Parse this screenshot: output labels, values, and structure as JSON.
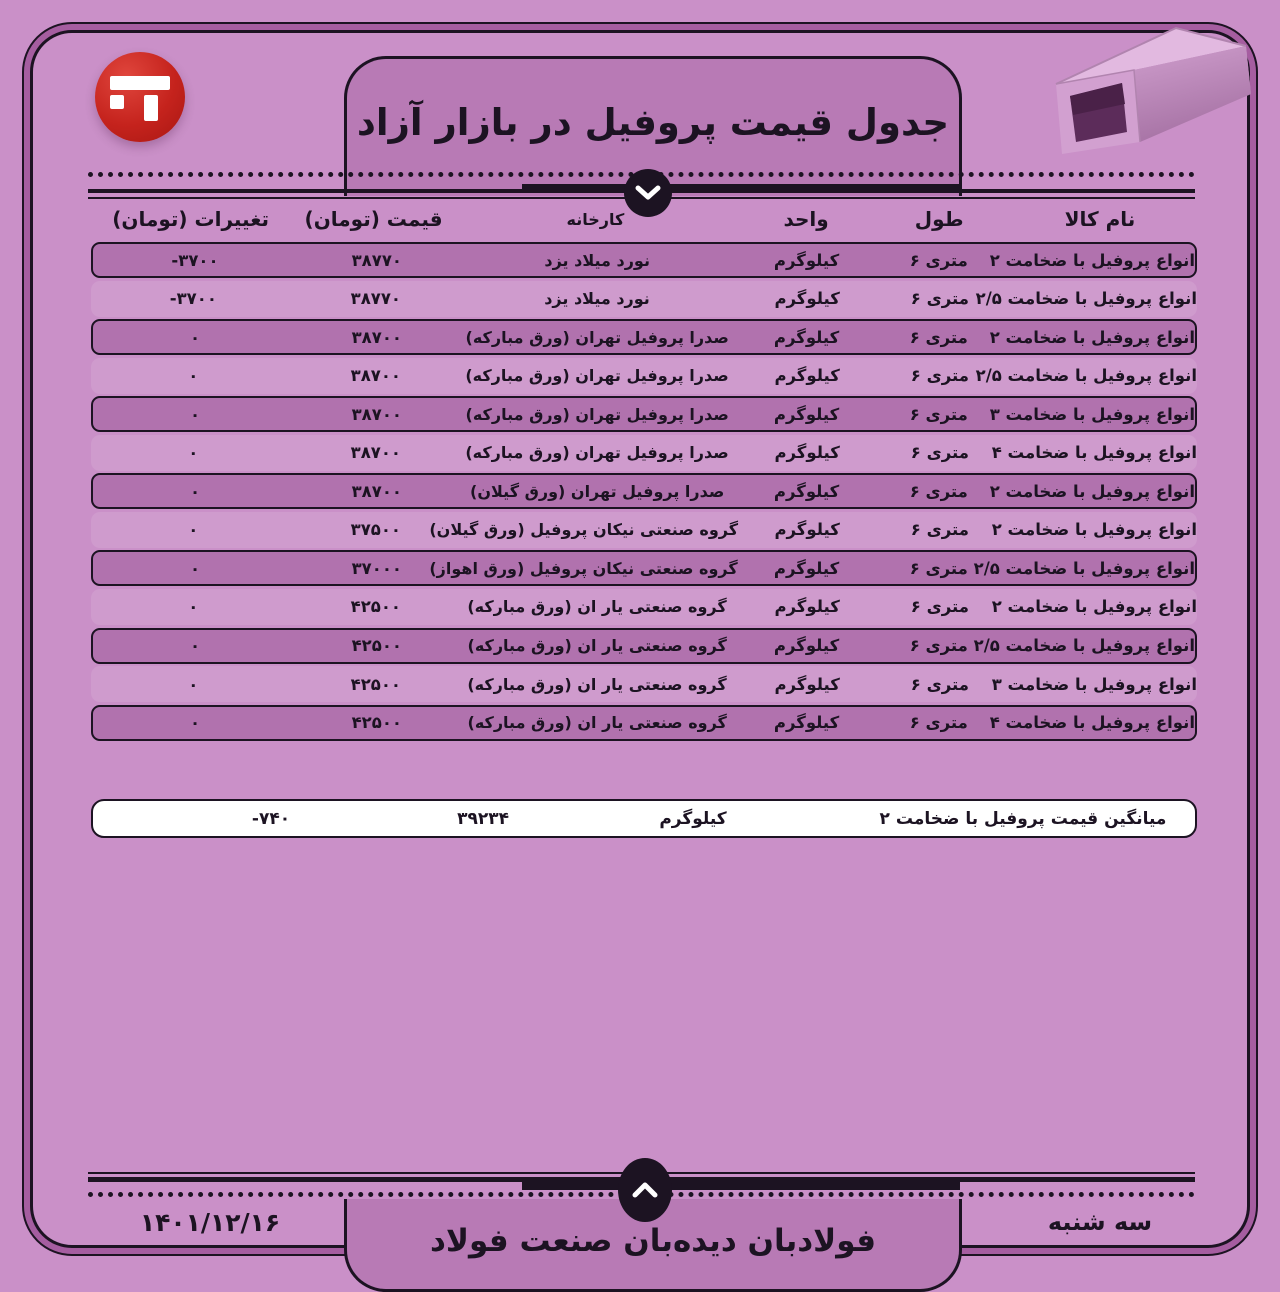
{
  "page": {
    "title": "جدول قیمت پروفیل در بازار آزاد",
    "brand": "فولادبان دیده‌بان صنعت فولاد",
    "date": "۱۴۰۱/۱۲/۱۶",
    "weekday": "سه شنبه"
  },
  "colors": {
    "background": "#ca90c8",
    "highlight_band": "#b172ae",
    "banner_fill": "#b87ab5",
    "ink": "#1c1322",
    "logo_red": "#c5231d",
    "summary_bg": "#ffffff"
  },
  "icons": {
    "logo": "fooladban-logo",
    "top_divider": "chevron-down-icon",
    "bottom_divider": "chevron-up-icon",
    "corner_photo": "steel-box-profile-tube"
  },
  "table": {
    "headers": [
      "نام کالا",
      "طول",
      "واحد",
      "کارخانه",
      "قیمت (تومان)",
      "تغییرات (تومان)"
    ],
    "rows": [
      {
        "name": "انواع پروفیل با ضخامت ۲",
        "length": "متری ۶",
        "unit": "کیلوگرم",
        "factory": "نورد میلاد یزد",
        "price": "۳۸۷۷۰",
        "change": "-۳۷۰۰",
        "highlight": true
      },
      {
        "name": "انواع پروفیل با ضخامت ۲/۵",
        "length": "متری ۶",
        "unit": "کیلوگرم",
        "factory": "نورد میلاد یزد",
        "price": "۳۸۷۷۰",
        "change": "-۳۷۰۰",
        "highlight": false
      },
      {
        "name": "انواع پروفیل با ضخامت ۲",
        "length": "متری ۶",
        "unit": "کیلوگرم",
        "factory": "صدرا پروفیل تهران (ورق مبارکه)",
        "price": "۳۸۷۰۰",
        "change": "۰",
        "highlight": true
      },
      {
        "name": "انواع پروفیل با ضخامت ۲/۵",
        "length": "متری ۶",
        "unit": "کیلوگرم",
        "factory": "صدرا پروفیل تهران (ورق مبارکه)",
        "price": "۳۸۷۰۰",
        "change": "۰",
        "highlight": false
      },
      {
        "name": "انواع پروفیل با ضخامت ۳",
        "length": "متری ۶",
        "unit": "کیلوگرم",
        "factory": "صدرا پروفیل تهران (ورق مبارکه)",
        "price": "۳۸۷۰۰",
        "change": "۰",
        "highlight": true
      },
      {
        "name": "انواع پروفیل با ضخامت ۴",
        "length": "متری ۶",
        "unit": "کیلوگرم",
        "factory": "صدرا پروفیل تهران (ورق مبارکه)",
        "price": "۳۸۷۰۰",
        "change": "۰",
        "highlight": false
      },
      {
        "name": "انواع پروفیل با ضخامت ۲",
        "length": "متری ۶",
        "unit": "کیلوگرم",
        "factory": "صدرا پروفیل تهران (ورق گیلان)",
        "price": "۳۸۷۰۰",
        "change": "۰",
        "highlight": true
      },
      {
        "name": "انواع پروفیل با ضخامت ۲",
        "length": "متری ۶",
        "unit": "کیلوگرم",
        "factory": "گروه صنعتی نیکان پروفیل (ورق گیلان)",
        "price": "۳۷۵۰۰",
        "change": "۰",
        "highlight": false
      },
      {
        "name": "انواع پروفیل با ضخامت ۲/۵",
        "length": "متری ۶",
        "unit": "کیلوگرم",
        "factory": "گروه صنعتی نیکان پروفیل (ورق اهواز)",
        "price": "۳۷۰۰۰",
        "change": "۰",
        "highlight": true
      },
      {
        "name": "انواع پروفیل با ضخامت ۲",
        "length": "متری ۶",
        "unit": "کیلوگرم",
        "factory": "گروه صنعتی یار ان (ورق مبارکه)",
        "price": "۴۲۵۰۰",
        "change": "۰",
        "highlight": false
      },
      {
        "name": "انواع پروفیل با ضخامت ۲/۵",
        "length": "متری ۶",
        "unit": "کیلوگرم",
        "factory": "گروه صنعتی یار ان (ورق مبارکه)",
        "price": "۴۲۵۰۰",
        "change": "۰",
        "highlight": true
      },
      {
        "name": "انواع پروفیل با ضخامت ۳",
        "length": "متری ۶",
        "unit": "کیلوگرم",
        "factory": "گروه صنعتی یار ان (ورق مبارکه)",
        "price": "۴۲۵۰۰",
        "change": "۰",
        "highlight": false
      },
      {
        "name": "انواع پروفیل با ضخامت ۴",
        "length": "متری ۶",
        "unit": "کیلوگرم",
        "factory": "گروه صنعتی یار ان (ورق مبارکه)",
        "price": "۴۲۵۰۰",
        "change": "۰",
        "highlight": true
      }
    ],
    "summary": {
      "label": "میانگین قیمت پروفیل با ضخامت ۲",
      "unit": "کیلوگرم",
      "price": "۳۹۲۳۴",
      "change": "-۷۴۰"
    }
  }
}
